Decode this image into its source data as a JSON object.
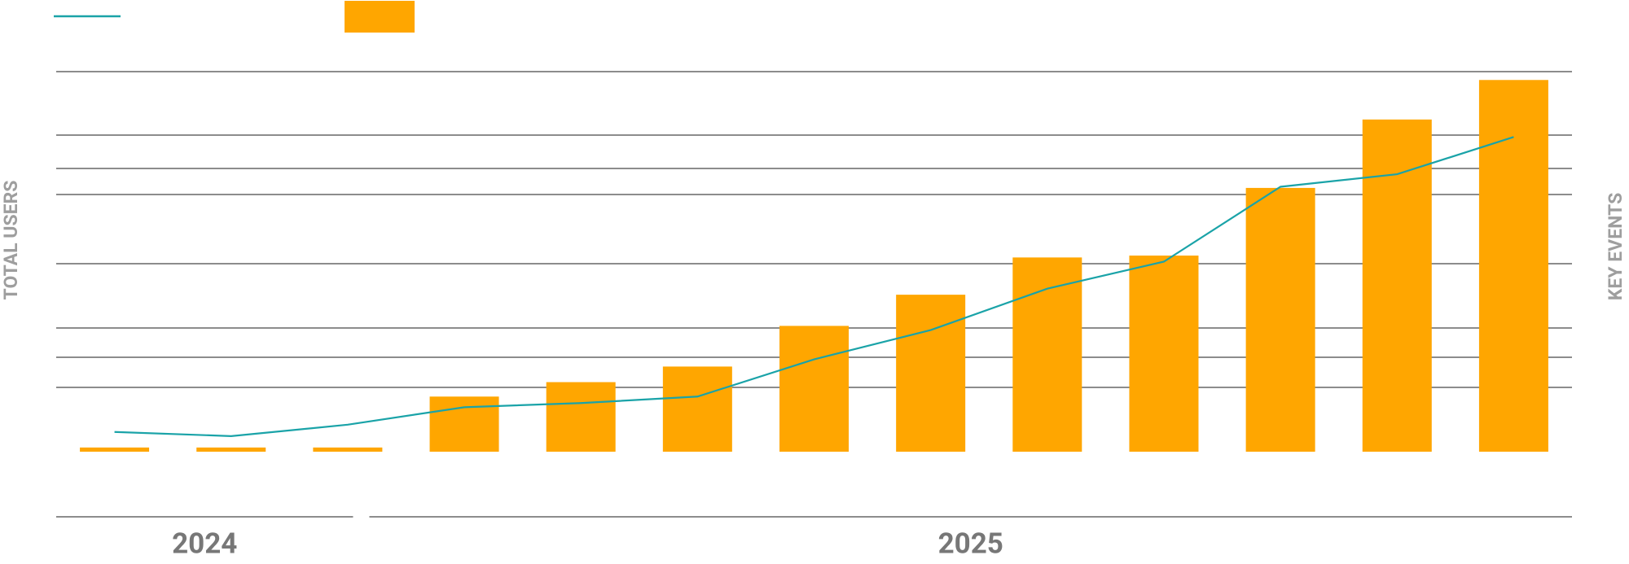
{
  "chart_data": {
    "type": "bar-line",
    "y_label": "TOTAL USERS",
    "y2_label": "KEY EVENTS",
    "categories": [
      null,
      null,
      null,
      null,
      null,
      null,
      null,
      null,
      null,
      null,
      null,
      null,
      null
    ],
    "x_groups": [
      {
        "label": "2024",
        "count": 3
      },
      {
        "label": "2025",
        "count": 10
      }
    ],
    "ylim": [
      0,
      100
    ],
    "y2lim": [
      0,
      100
    ],
    "series": [
      {
        "type": "bar",
        "axis": "y2",
        "color": "#ffa600",
        "values": [
          1.1,
          1.1,
          1.1,
          14.5,
          18.3,
          22.4,
          33.1,
          41.3,
          51.1,
          51.6,
          69.4,
          87.4,
          97.8
        ]
      },
      {
        "type": "line",
        "axis": "y",
        "color": "#1aa3a8",
        "values": [
          5.2,
          4.1,
          7.1,
          11.7,
          12.8,
          14.5,
          24.3,
          32.0,
          42.9,
          50.0,
          69.7,
          73.0,
          82.8
        ]
      }
    ]
  }
}
